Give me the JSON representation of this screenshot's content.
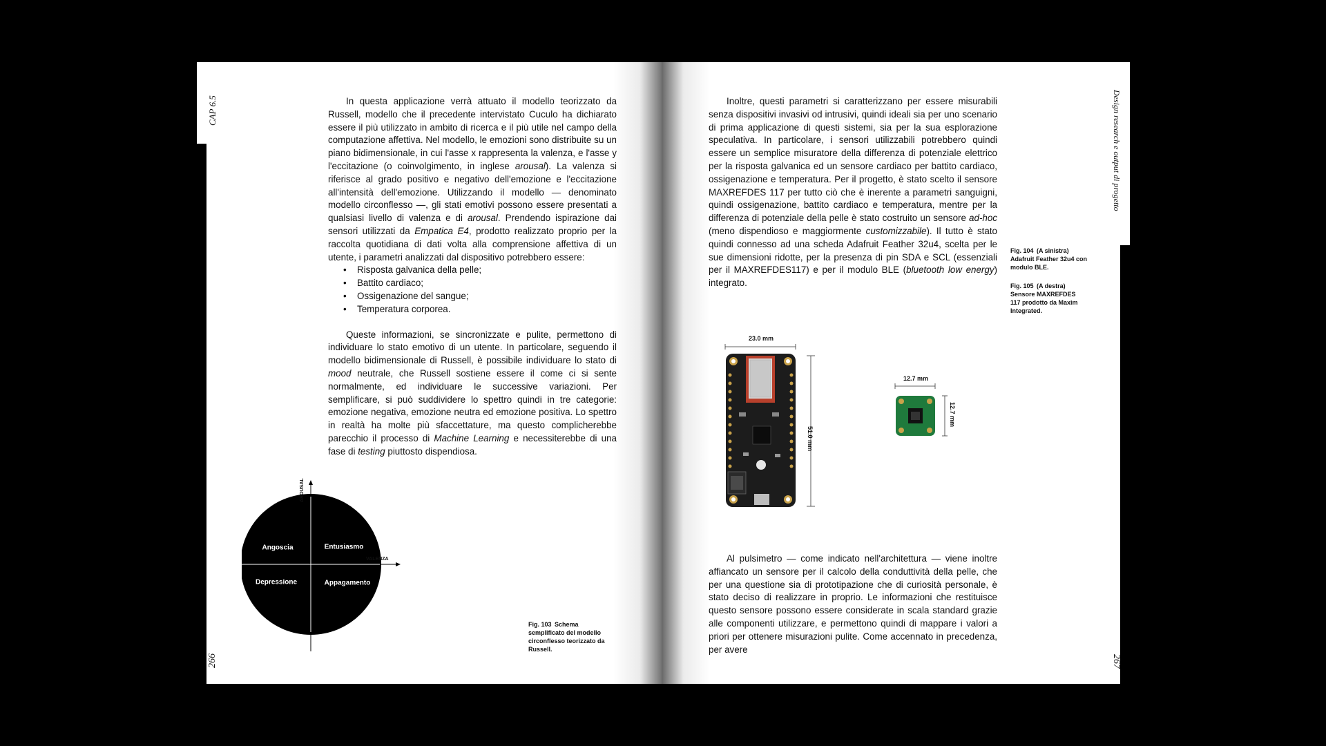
{
  "left_page": {
    "running_head": "CAP 6.5",
    "folio": "266",
    "paragraph1": "In questa applicazione verrà attuato il modello teorizzato da Russell, modello che il precedente intervistato Cuculo ha dichiarato essere il più utilizzato in ambito di ricerca e il più utile nel campo della computazione affettiva. Nel modello, le emozioni sono distribuite su un piano bidimensionale, in cui l'asse x rappresenta la valenza, e l'asse y l'eccitazione (o coinvolgimento, in inglese",
    "p1_arousal": "arousal",
    "p1_b": "). La valenza si riferisce al grado positivo e negativo dell'emozione e l'eccitazione all'intensità dell'emozione. Utilizzando il modello — denominato modello circonflesso —, gli stati emotivi possono essere presentati a qualsiasi livello di valenza e di",
    "p1_arousal2": "arousal",
    "p1_c": ". Prendendo ispirazione dai sensori utilizzati da",
    "p1_empatica": "Empatica E4",
    "p1_d": ", prodotto realizzato proprio per la raccolta quotidiana di dati volta alla comprensione affettiva di un utente, i parametri analizzati dal dispositivo potrebbero essere:",
    "bullets": [
      "Risposta galvanica della pelle;",
      "Battito cardiaco;",
      "Ossigenazione del sangue;",
      "Temperatura corporea."
    ],
    "p2_a": "Queste informazioni, se sincronizzate e pulite, permettono di individuare lo stato emotivo di un utente. In particolare, seguendo il modello bidimensionale di Russell, è possibile individuare lo stato di",
    "p2_mood": "mood",
    "p2_b": "neutrale, che Russell sostiene essere il come ci si sente normalmente, ed individuare le successive variazioni. Per semplificare, si può suddividere lo spettro quindi in tre categorie: emozione negativa, emozione neutra ed emozione positiva. Lo spettro in realtà ha molte più sfaccettature, ma questo complicherebbe parecchio il processo di",
    "p2_ml": "Machine Learning",
    "p2_c": "e necessiterebbe di una fase di",
    "p2_testing": "testing",
    "p2_d": "piuttosto dispendiosa.",
    "diagram": {
      "y_axis": "AROUSAL",
      "x_axis": "VALENZA",
      "quadrants": {
        "top_left": "Angoscia",
        "top_right": "Entusiasmo",
        "bottom_left": "Depressione",
        "bottom_right": "Appagamento"
      }
    },
    "caption": {
      "num": "Fig. 103",
      "text_a": "Schema",
      "text_b": "semplificato del modello circonflesso teorizzato da Russell."
    }
  },
  "right_page": {
    "running_head": "Design research e output di progetto",
    "folio": "267",
    "p1_a": "Inoltre, questi parametri si caratterizzano per essere misurabili senza dispositivi invasivi od intrusivi, quindi ideali sia per uno scenario di prima applicazione di questi sistemi, sia per la sua esplorazione speculativa. In particolare, i sensori utilizzabili potrebbero quindi essere un semplice misuratore della differenza di potenziale elettrico per la risposta galvanica ed un sensore cardiaco per battito cardiaco, ossigenazione e temperatura. Per il progetto, è stato scelto il sensore MAXREFDES 117 per tutto ciò che è inerente a parametri sanguigni, quindi ossigenazione, battito cardiaco e temperatura, mentre per la differenza di potenziale della pelle è stato costruito un sensore",
    "p1_adhoc": "ad-hoc",
    "p1_b": "(meno dispendioso e maggiormente",
    "p1_custom": "customizzabile",
    "p1_c": "). Il tutto è stato quindi connesso ad una scheda Adafruit Feather 32u4, scelta per le sue dimensioni ridotte, per la presenza di pin SDA e SCL (essenziali per il MAXREFDES117) e per il modulo BLE (",
    "p1_ble": "bluetooth low energy",
    "p1_d": ") integrato.",
    "caption104": {
      "num": "Fig. 104",
      "pos": "(A sinistra)",
      "text": "Adafruit Feather 32u4 con modulo BLE."
    },
    "caption105": {
      "num": "Fig. 105",
      "pos": "(A destra)",
      "text": "Sensore MAXREFDES 117 prodotto da Maxim Integrated."
    },
    "dims": {
      "board_width": "23.0 mm",
      "board_height": "51.0 mm",
      "sensor_width": "12.7 mm",
      "sensor_height": "12.7 mm"
    },
    "p2": "Al pulsimetro — come indicato nell'architettura — viene inoltre affiancato un sensore per il calcolo della conduttività della pelle, che per una questione sia di prototipazione che di curiosità personale, è stato deciso di realizzare in proprio. Le informazioni che restituisce questo sensore possono essere considerate in scala standard grazie alle componenti utilizzare, e permettono quindi di mappare i valori a priori per ottenere misurazioni pulite. Come accennato in precedenza, per avere"
  }
}
